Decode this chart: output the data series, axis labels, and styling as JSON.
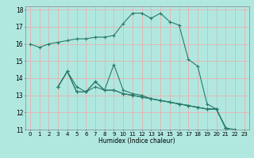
{
  "xlabel": "Humidex (Indice chaleur)",
  "ylabel": "",
  "xlim": [
    -0.5,
    23.5
  ],
  "ylim": [
    11,
    18.2
  ],
  "yticks": [
    11,
    12,
    13,
    14,
    15,
    16,
    17,
    18
  ],
  "xticks": [
    0,
    1,
    2,
    3,
    4,
    5,
    6,
    7,
    8,
    9,
    10,
    11,
    12,
    13,
    14,
    15,
    16,
    17,
    18,
    19,
    20,
    21,
    22,
    23
  ],
  "bg_color": "#b0e8e0",
  "grid_color": "#e8b0b0",
  "line_color": "#2a7a6a",
  "series": [
    {
      "x": [
        0,
        1,
        2,
        3,
        4,
        5,
        6,
        7,
        8,
        9,
        10,
        11,
        12,
        13,
        14,
        15,
        16,
        17,
        18,
        19,
        20,
        21,
        22,
        23
      ],
      "y": [
        16.0,
        15.8,
        16.0,
        16.1,
        16.2,
        16.3,
        16.3,
        16.4,
        16.4,
        16.5,
        17.2,
        17.8,
        17.8,
        17.5,
        17.8,
        17.3,
        17.1,
        15.1,
        14.7,
        12.5,
        12.2,
        11.1,
        11.0,
        10.9
      ]
    },
    {
      "x": [
        3,
        4,
        5,
        6,
        7,
        8,
        9,
        10,
        11,
        12,
        13,
        14,
        15,
        16,
        17,
        18,
        19,
        20,
        21,
        22,
        23
      ],
      "y": [
        13.5,
        14.4,
        13.5,
        13.2,
        13.5,
        13.3,
        14.8,
        13.3,
        13.1,
        13.0,
        12.8,
        12.7,
        12.6,
        12.5,
        12.4,
        12.3,
        12.2,
        12.2,
        11.1,
        10.8,
        10.9
      ]
    },
    {
      "x": [
        3,
        4,
        5,
        6,
        7,
        8,
        9,
        10,
        11,
        12,
        13,
        14,
        15,
        16,
        17,
        18,
        19,
        20,
        21,
        22,
        23
      ],
      "y": [
        13.5,
        14.4,
        13.2,
        13.2,
        13.8,
        13.3,
        13.3,
        13.1,
        13.0,
        12.9,
        12.8,
        12.7,
        12.6,
        12.5,
        12.4,
        12.3,
        12.2,
        12.2,
        11.1,
        10.8,
        10.9
      ]
    },
    {
      "x": [
        3,
        4,
        5,
        6,
        7,
        8,
        9,
        10,
        11,
        12,
        13,
        14,
        15,
        16,
        17,
        18,
        19,
        20,
        21,
        22,
        23
      ],
      "y": [
        13.5,
        14.4,
        13.2,
        13.2,
        13.8,
        13.3,
        13.3,
        13.1,
        13.0,
        12.9,
        12.8,
        12.7,
        12.6,
        12.5,
        12.4,
        12.3,
        12.2,
        12.2,
        11.1,
        10.8,
        10.9
      ]
    }
  ]
}
